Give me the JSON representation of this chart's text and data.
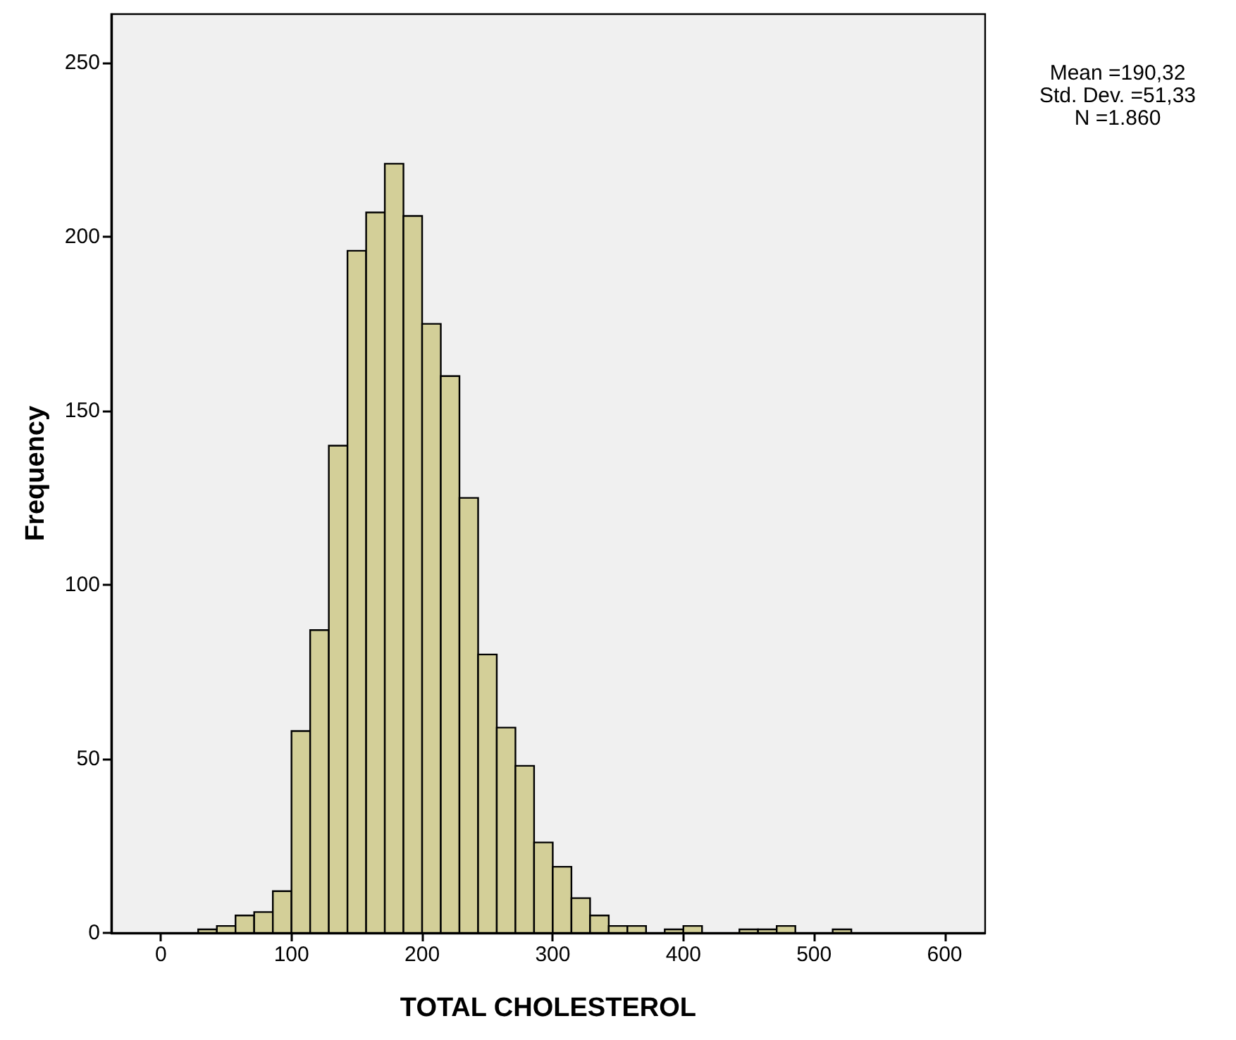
{
  "chart_data": {
    "type": "histogram",
    "xlabel": "TOTAL CHOLESTEROL",
    "ylabel": "Frequency",
    "annotations": [
      "Mean =190,32",
      "Std. Dev. =51,33",
      "N =1.860"
    ],
    "bins": [
      28.57,
      42.86,
      57.14,
      71.43,
      85.71,
      100,
      114.29,
      128.57,
      142.86,
      157.14,
      171.43,
      185.71,
      200,
      214.29,
      228.57,
      242.86,
      257.14,
      271.43,
      285.71,
      300,
      314.29,
      328.57,
      342.86,
      357.14,
      371.43,
      385.71,
      400,
      414.29,
      428.57,
      442.86,
      457.14,
      471.43,
      485.71,
      500,
      514.29,
      528.57
    ],
    "values": [
      1,
      2,
      5,
      6,
      12,
      58,
      87,
      140,
      196,
      207,
      221,
      206,
      175,
      160,
      125,
      80,
      59,
      48,
      26,
      19,
      10,
      5,
      2,
      2,
      0,
      1,
      2,
      0,
      0,
      1,
      1,
      2,
      0,
      0,
      1
    ],
    "color": "#d3cf98",
    "xlim": [
      -38,
      631
    ],
    "ylim": [
      0,
      264
    ],
    "xticks": [
      0,
      100,
      200,
      300,
      400,
      500,
      600
    ],
    "yticks": [
      0,
      50,
      100,
      150,
      200,
      250
    ]
  }
}
